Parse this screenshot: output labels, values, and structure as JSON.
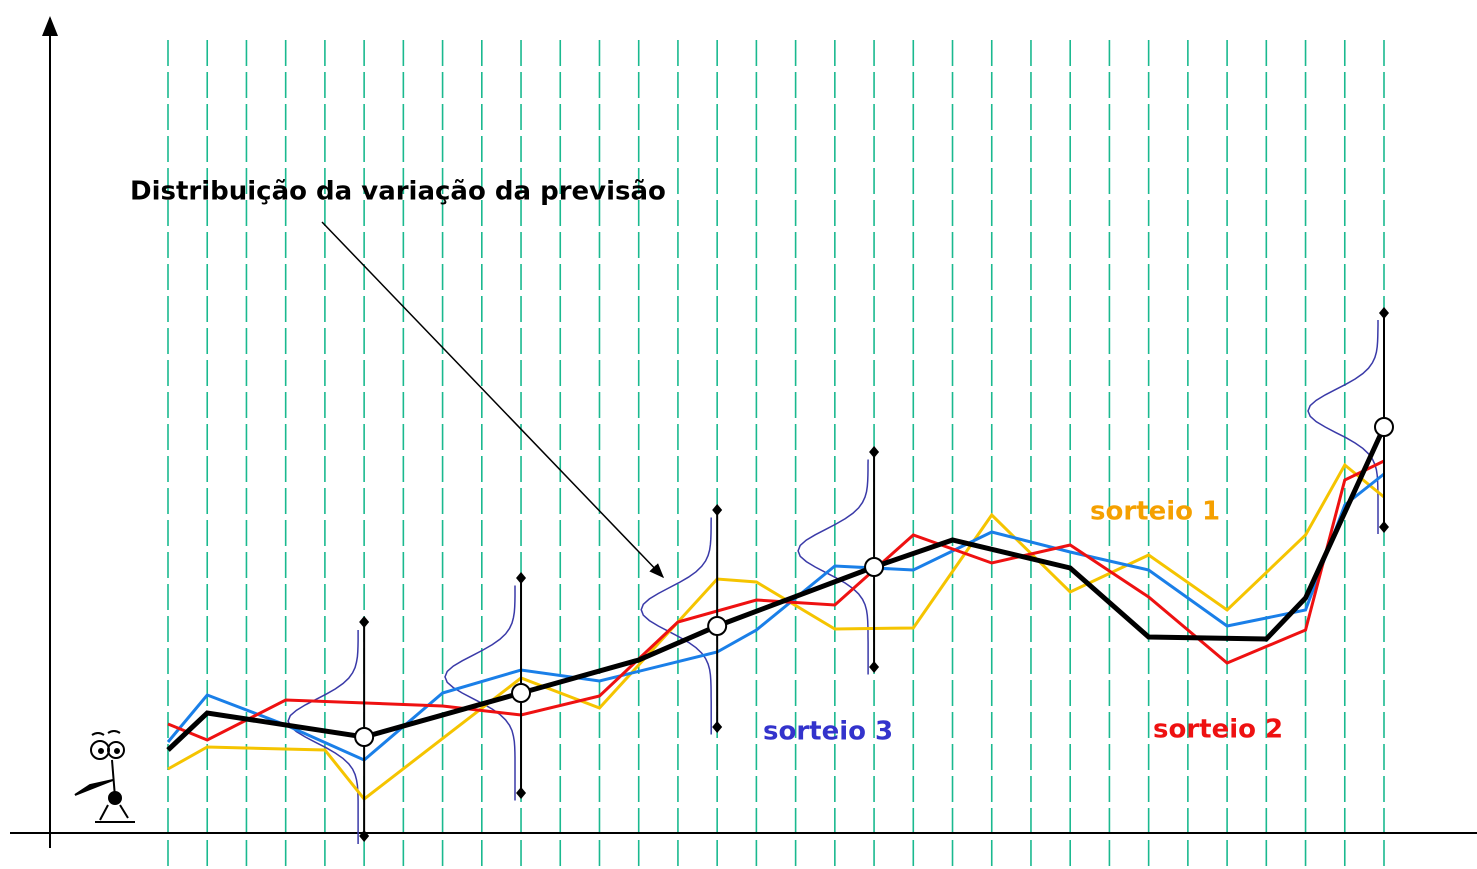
{
  "chart_data": {
    "type": "line",
    "annotation": "Distribuição da variação da previsão",
    "xlim": [
      0,
      31
    ],
    "ylim": [
      0,
      800
    ],
    "series": [
      {
        "color": "#000000",
        "x": [
          0,
          1,
          5,
          9,
          12,
          14,
          18,
          20,
          23,
          25,
          28,
          29,
          31
        ],
        "values": [
          83,
          120,
          96,
          140,
          173,
          207,
          266,
          293,
          265,
          196,
          194,
          235,
          406
        ]
      },
      {
        "name": "sorteio 2",
        "color": "#ee1111",
        "x": [
          0,
          1,
          3,
          7,
          9,
          11,
          13,
          15,
          17,
          19,
          21,
          23,
          25,
          27,
          29,
          30,
          31
        ],
        "values": [
          109,
          93,
          133,
          127,
          118,
          137,
          211,
          233,
          228,
          298,
          270,
          288,
          236,
          170,
          203,
          353,
          372
        ]
      },
      {
        "name": "sorteio 3",
        "color": "#1a7fe8",
        "x": [
          0,
          1,
          3,
          5,
          7,
          9,
          11,
          14,
          15,
          17,
          19,
          21,
          23,
          25,
          27,
          29,
          30,
          31
        ],
        "values": [
          91,
          138,
          108,
          73,
          140,
          163,
          152,
          181,
          203,
          267,
          263,
          301,
          281,
          263,
          207,
          223,
          328,
          359
        ]
      },
      {
        "name": "sorteio 1",
        "color": "#f5c400",
        "x": [
          0,
          1,
          4,
          5,
          9,
          11,
          14,
          15,
          17,
          19,
          21,
          23,
          25,
          27,
          29,
          30,
          31
        ],
        "values": [
          64,
          86,
          83,
          34,
          155,
          125,
          254,
          251,
          204,
          205,
          318,
          241,
          278,
          223,
          298,
          368,
          336
        ]
      }
    ],
    "distributions": [
      {
        "x": 5,
        "center": 96,
        "low": -3,
        "high": 211
      },
      {
        "x": 9,
        "center": 140,
        "low": 40,
        "high": 255
      },
      {
        "x": 14,
        "center": 207,
        "low": 106,
        "high": 323
      },
      {
        "x": 18,
        "center": 266,
        "low": 166,
        "high": 381
      },
      {
        "x": 31,
        "center": 406,
        "low": 306,
        "high": 520
      }
    ]
  }
}
